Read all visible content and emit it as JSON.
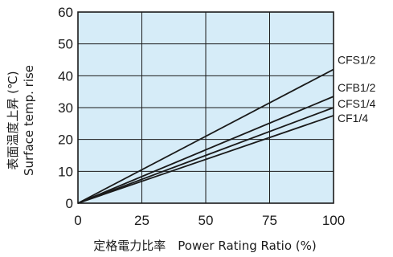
{
  "chart_data": {
    "type": "line",
    "xlabel": "定格電力比率　Power Rating Ratio (%)",
    "ylabel_ja": "表面温度上昇 (℃)",
    "ylabel_en": "Surface temp. rise",
    "xlim": [
      0,
      100
    ],
    "ylim": [
      0,
      60
    ],
    "x_ticks": [
      "0",
      "25",
      "50",
      "75",
      "100"
    ],
    "y_ticks": [
      "0",
      "10",
      "20",
      "30",
      "40",
      "50",
      "60"
    ],
    "grid": true,
    "colors": {
      "plot_bg": "#d6ecf8",
      "grid": "#1a1a1a",
      "series": "#1a1a1a"
    },
    "series": [
      {
        "name": "CFS1/2",
        "x": [
          0,
          100
        ],
        "y": [
          0,
          42
        ]
      },
      {
        "name": "CFB1/2",
        "x": [
          0,
          100
        ],
        "y": [
          0,
          33.5
        ]
      },
      {
        "name": "CFS1/4",
        "x": [
          0,
          100
        ],
        "y": [
          0,
          30
        ]
      },
      {
        "name": "CF1/4",
        "x": [
          0,
          100
        ],
        "y": [
          0,
          27.5
        ]
      }
    ]
  }
}
